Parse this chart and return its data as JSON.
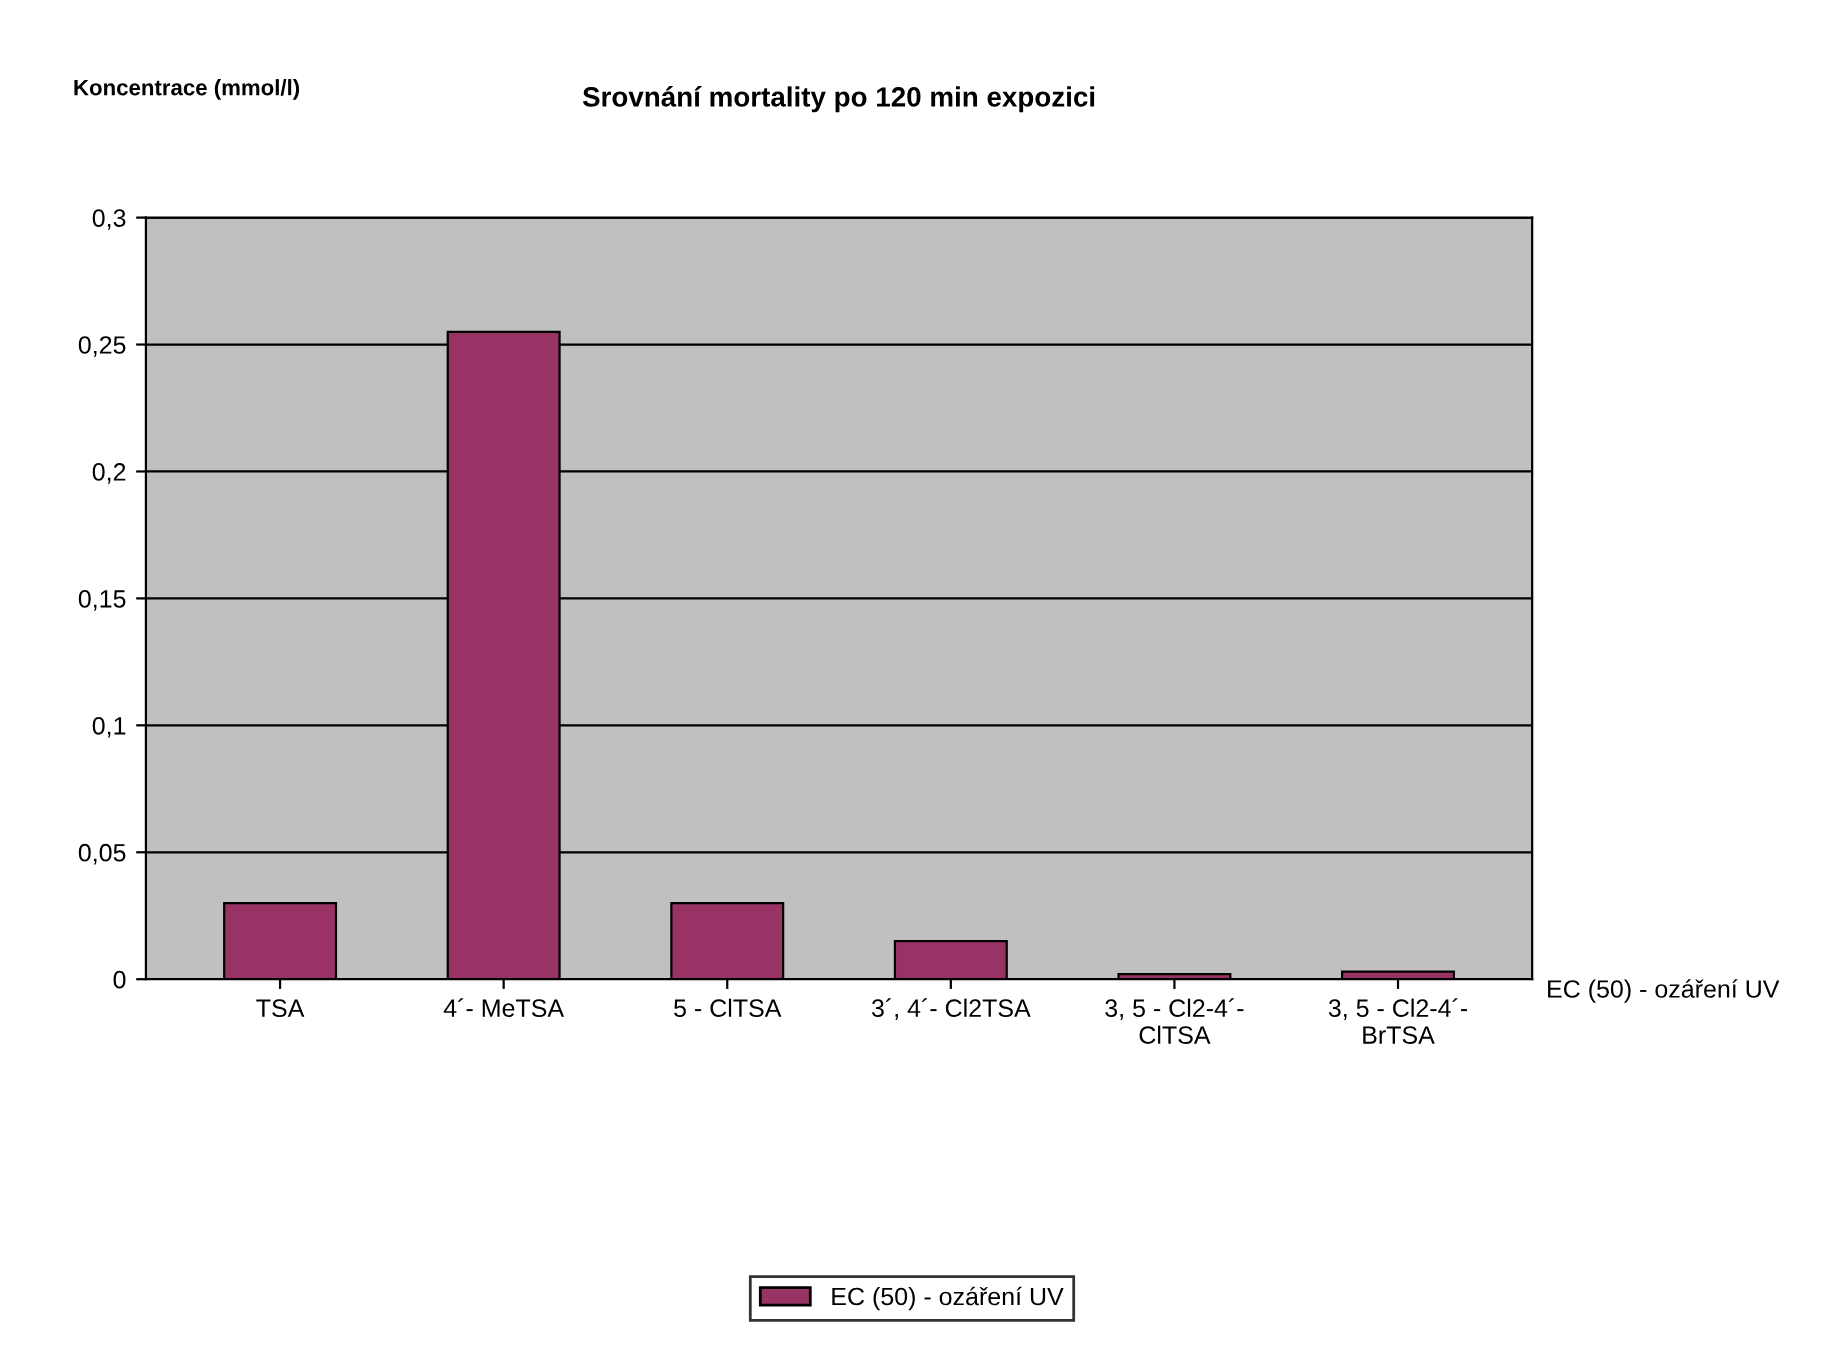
{
  "chart_data": {
    "type": "bar",
    "title": "Srovnání mortality po 120 min expozici",
    "ylabel": "Koncentrace (mmol/l)",
    "categories": [
      "TSA",
      "4´- MeTSA",
      "5 - ClTSA",
      "3´, 4´- Cl2TSA",
      "3, 5 - Cl2-4´-\nClTSA",
      "3, 5 - Cl2-4´-\nBrTSA"
    ],
    "series": [
      {
        "name": "EC (50) - ozáření UV",
        "color": "#993366",
        "values": [
          0.03,
          0.255,
          0.03,
          0.015,
          0.002,
          0.003
        ]
      }
    ],
    "ylim": [
      0,
      0.3
    ],
    "yticks": [
      {
        "value": 0,
        "label": "0"
      },
      {
        "value": 0.05,
        "label": "0,05"
      },
      {
        "value": 0.1,
        "label": "0,1"
      },
      {
        "value": 0.15,
        "label": "0,15"
      },
      {
        "value": 0.2,
        "label": "0,2"
      },
      {
        "value": 0.25,
        "label": "0,25"
      },
      {
        "value": 0.3,
        "label": "0,3"
      }
    ],
    "grid": "y",
    "legend": "bottom",
    "annotations": [
      "EC (50) - ozáření UV"
    ]
  }
}
